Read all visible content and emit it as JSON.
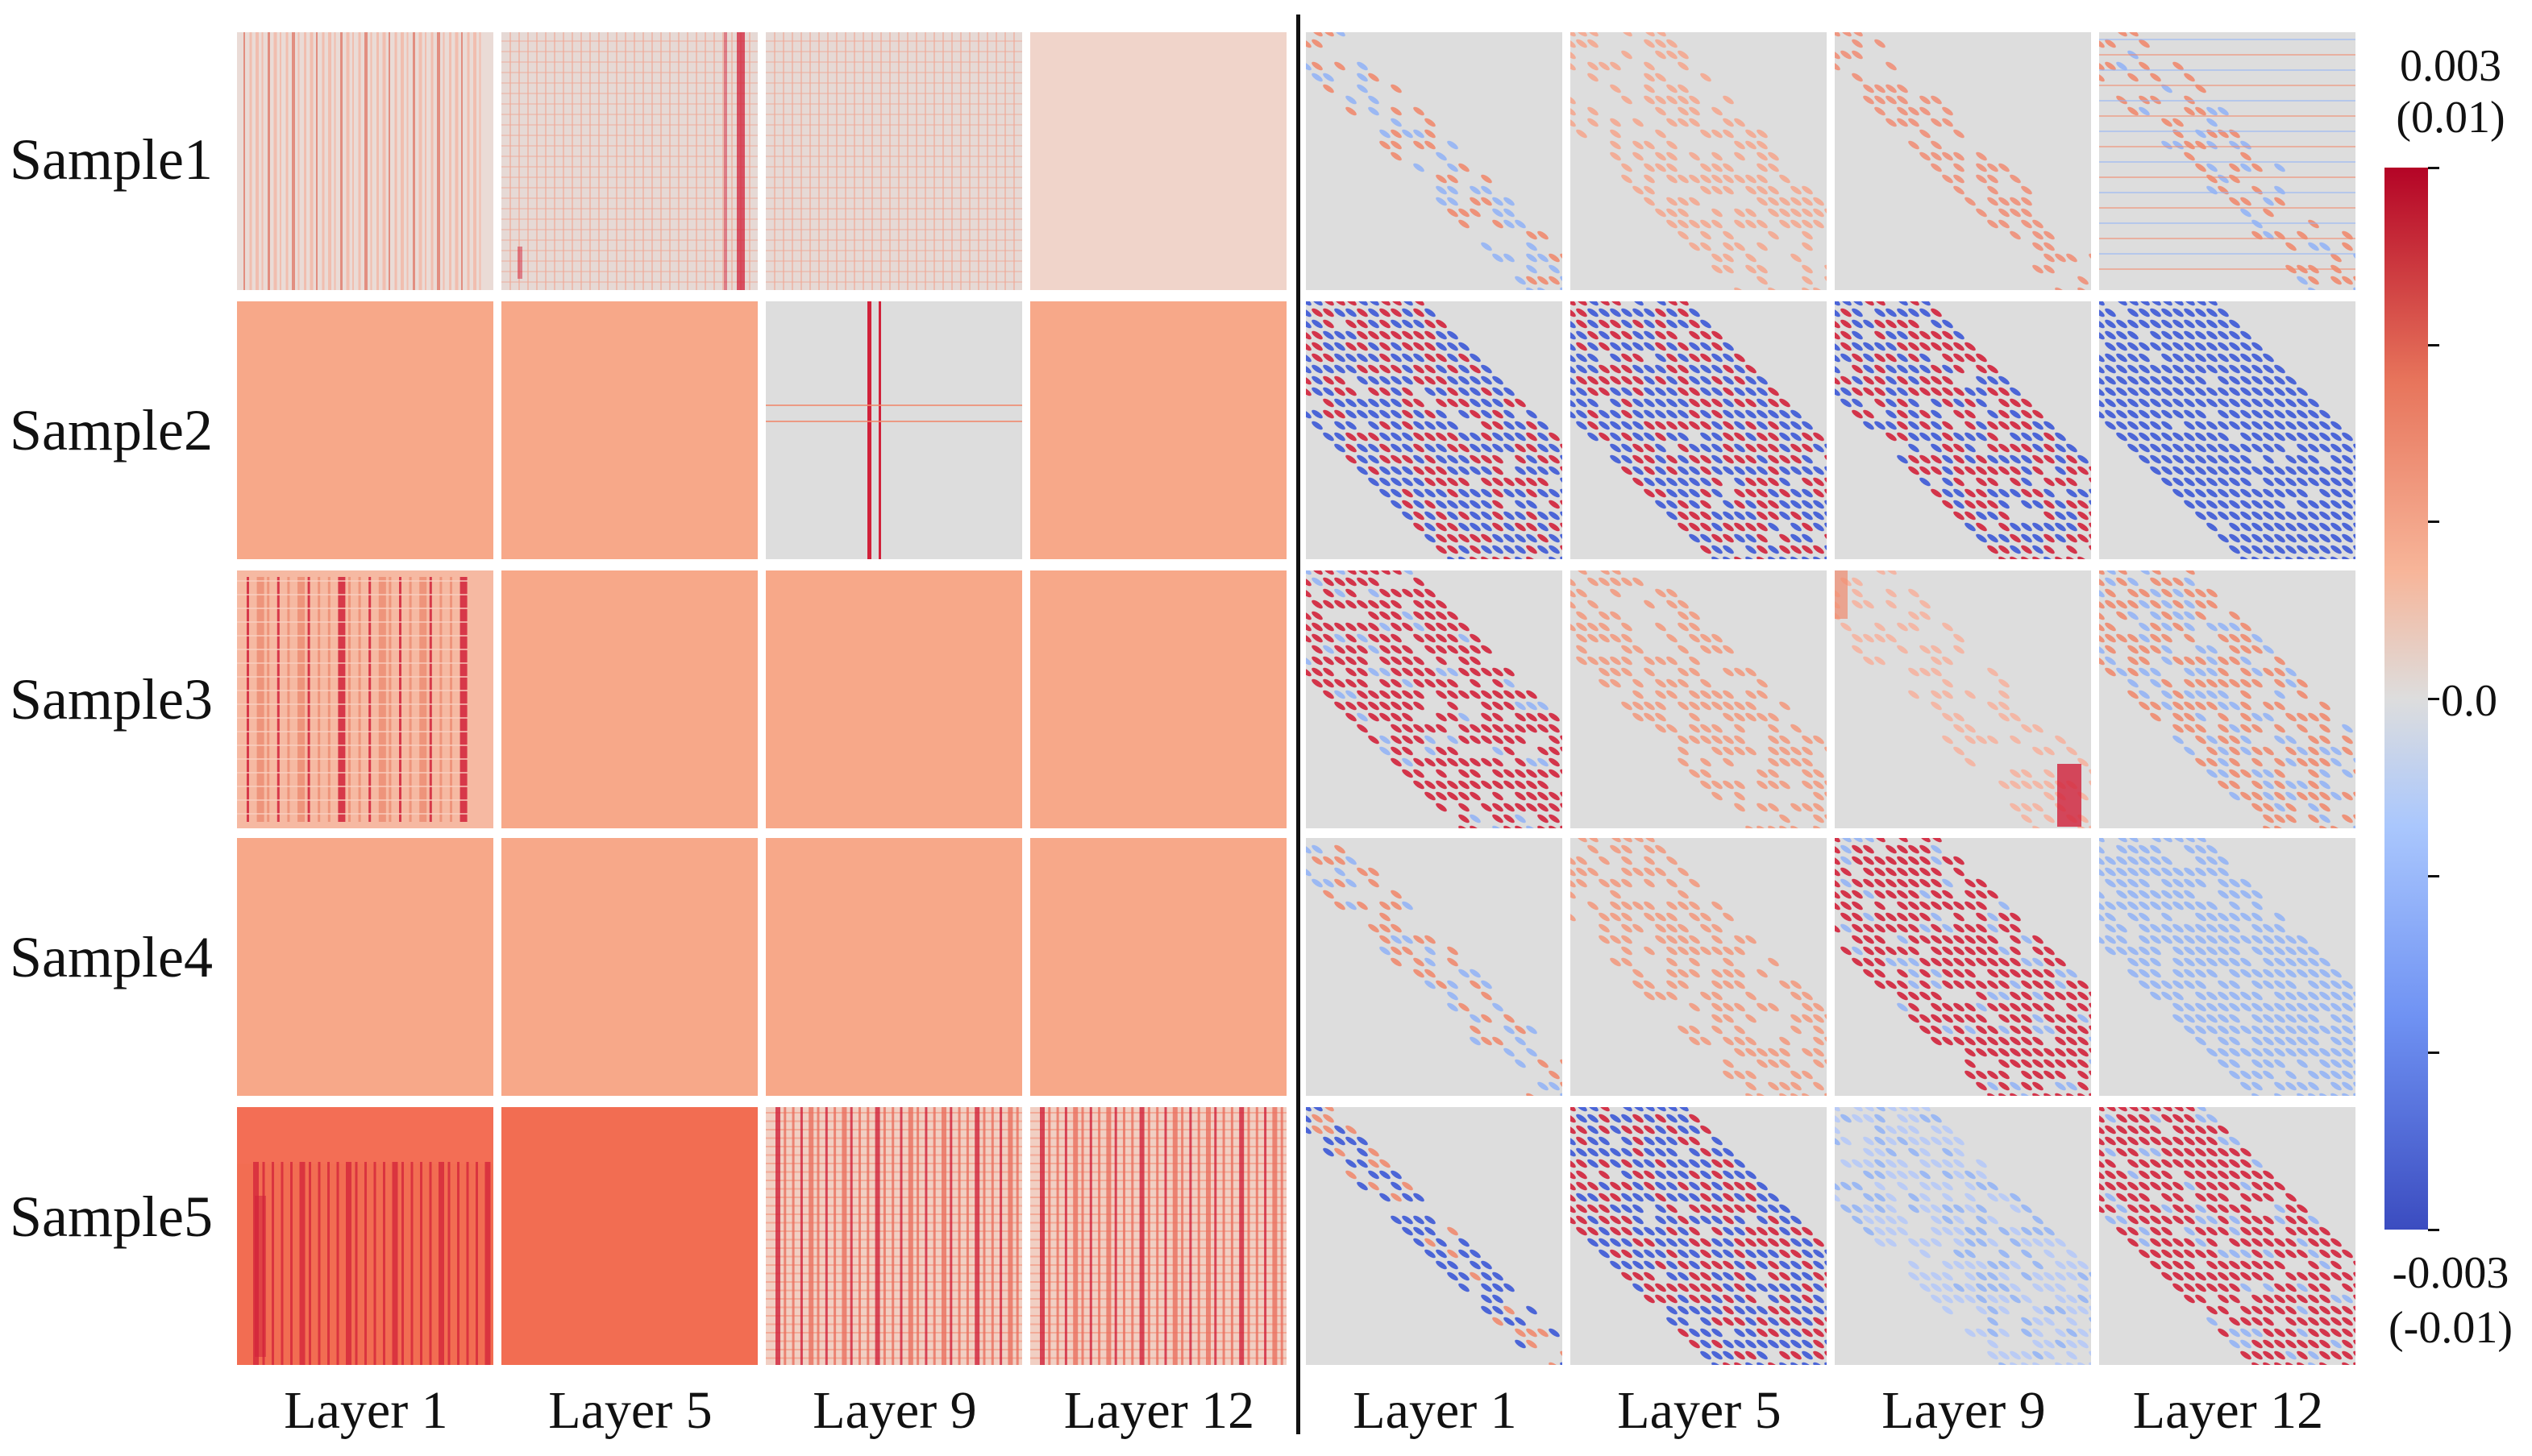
{
  "chart_data": {
    "type": "heatmap",
    "rows": [
      "Sample1",
      "Sample2",
      "Sample3",
      "Sample4",
      "Sample5"
    ],
    "columns_left": [
      "Layer 1",
      "Layer 5",
      "Layer 9",
      "Layer 12"
    ],
    "columns_right": [
      "Layer 1",
      "Layer 5",
      "Layer 9",
      "Layer 12"
    ],
    "colormap": "coolwarm",
    "colorbar": {
      "top_label": "0.003",
      "top_label_alt": "(0.01)",
      "mid_label": "0.0",
      "bottom_label": "-0.003",
      "bottom_label_alt": "(-0.01)",
      "range_left": [
        -0.003,
        0.003
      ],
      "range_right": [
        -0.01,
        0.01
      ],
      "ticks": 7
    },
    "panels_left": [
      [
        "vstripes-light",
        "grid-spots",
        "grid-light",
        "uniform-pale"
      ],
      [
        "uniform-salmon",
        "uniform-salmon",
        "cross",
        "uniform-salmon"
      ],
      [
        "vstripes-block",
        "uniform-salmon",
        "uniform-salmon",
        "uniform-salmon"
      ],
      [
        "uniform-salmon",
        "uniform-salmon",
        "uniform-salmon",
        "uniform-salmon"
      ],
      [
        "vstripes-strong",
        "uniform-dark",
        "vstripes-grid",
        "vstripes-grid"
      ]
    ],
    "panels_right": [
      [
        "diag-mixed-faint",
        "diag-warm-smooth",
        "diag-warm-faint",
        "hlines-warm"
      ],
      [
        "diag-blue-red",
        "diag-blue-red",
        "diag-red-blue",
        "diag-blue-strong"
      ],
      [
        "diag-red",
        "diag-red-faint",
        "diag-red-corner",
        "diag-mixed"
      ],
      [
        "diag-mixed-faint",
        "diag-red-faint",
        "diag-red-strong",
        "diag-blue"
      ],
      [
        "diag-narrow-mixed",
        "diag-blue-red",
        "diag-blue-faint",
        "diag-red-strong"
      ]
    ]
  },
  "colors": {
    "salmon": "#f7a889",
    "dark_salmon": "#f26d52",
    "pale": "#f0d4ca",
    "neutral": "#dddddd",
    "red": "#d1213a",
    "blue": "#3b58d6",
    "light_red": "#f08a6e",
    "light_blue": "#93b4f5"
  }
}
